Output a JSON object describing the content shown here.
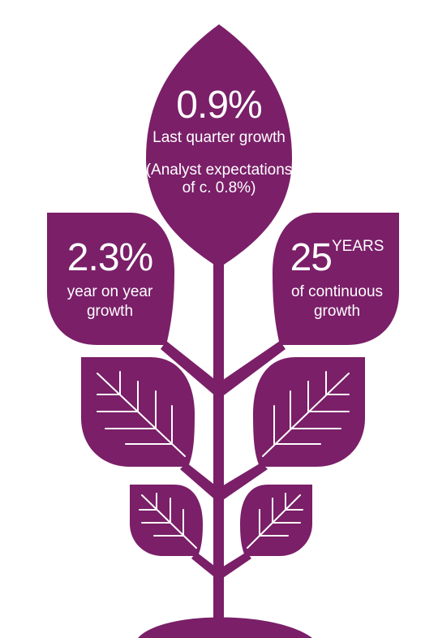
{
  "colors": {
    "plant": "#7a1f68",
    "vein": "#ffffff"
  },
  "top_leaf": {
    "stat": "0.9%",
    "label": "Last quarter growth",
    "note_line1": "(Analyst expectations",
    "note_line2": "of c. 0.8%)"
  },
  "left_leaf": {
    "stat": "2.3%",
    "label_line1": "year on year",
    "label_line2": "growth"
  },
  "right_leaf": {
    "stat": "25",
    "stat_suffix": "YEARS",
    "label_line1": "of continuous",
    "label_line2": "growth"
  }
}
